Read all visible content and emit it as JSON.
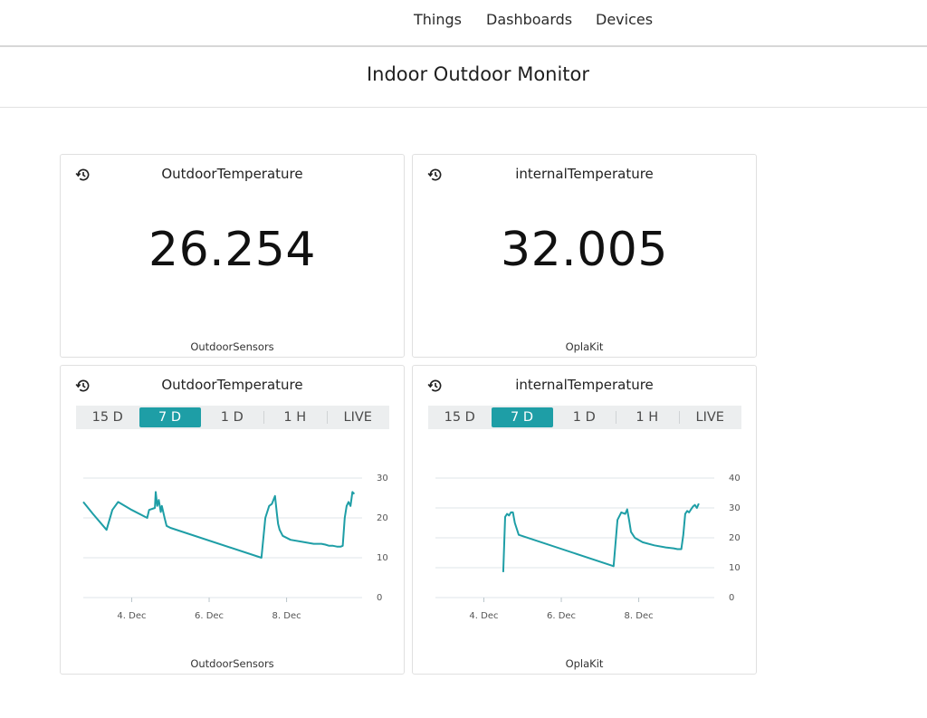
{
  "nav": {
    "items": [
      "Things",
      "Dashboards",
      "Devices"
    ]
  },
  "page": {
    "title": "Indoor Outdoor Monitor"
  },
  "colors": {
    "accent": "#1e9ea6",
    "line": "#1e9ea6",
    "grid": "#dfe6ea"
  },
  "icons": {
    "history": "history-icon"
  },
  "value_cards": [
    {
      "title": "OutdoorTemperature",
      "value": "26.254",
      "footer": "OutdoorSensors"
    },
    {
      "title": "internalTemperature",
      "value": "32.005",
      "footer": "OplaKit"
    }
  ],
  "chart_cards": [
    {
      "title": "OutdoorTemperature",
      "footer": "OutdoorSensors",
      "ranges": [
        "15 D",
        "7 D",
        "1 D",
        "1 H",
        "LIVE"
      ],
      "active_range": "7 D"
    },
    {
      "title": "internalTemperature",
      "footer": "OplaKit",
      "ranges": [
        "15 D",
        "7 D",
        "1 D",
        "1 H",
        "LIVE"
      ],
      "active_range": "7 D"
    }
  ],
  "chart_data": [
    {
      "type": "line",
      "title": "OutdoorTemperature",
      "xlabel": "",
      "ylabel": "",
      "xticks": [
        {
          "day": 4,
          "label": "4. Dec"
        },
        {
          "day": 6,
          "label": "6. Dec"
        },
        {
          "day": 8,
          "label": "8. Dec"
        }
      ],
      "yticks": [
        0,
        10,
        20,
        30
      ],
      "xlim": [
        2.75,
        9.95
      ],
      "ylim": [
        0,
        30
      ],
      "series": [
        {
          "name": "OutdoorTemperature",
          "x": [
            2.75,
            3.0,
            3.35,
            3.5,
            3.65,
            4.0,
            4.4,
            4.45,
            4.6,
            4.62,
            4.66,
            4.7,
            4.75,
            4.78,
            4.85,
            4.9,
            5.0,
            7.35,
            7.45,
            7.55,
            7.62,
            7.7,
            7.75,
            7.78,
            7.82,
            7.9,
            8.1,
            8.4,
            8.7,
            8.9,
            9.0,
            9.1,
            9.2,
            9.3,
            9.4,
            9.45,
            9.5,
            9.55,
            9.6,
            9.65,
            9.7,
            9.75
          ],
          "y": [
            24.0,
            21.0,
            17.0,
            22.0,
            24.0,
            22.0,
            20.0,
            22.0,
            22.5,
            26.5,
            23.0,
            24.5,
            21.5,
            23.0,
            20.0,
            18.0,
            17.5,
            10.0,
            20.0,
            23.0,
            23.5,
            25.5,
            21.0,
            18.5,
            17.0,
            15.5,
            14.5,
            14.0,
            13.5,
            13.5,
            13.3,
            13.0,
            13.0,
            12.8,
            12.8,
            13.0,
            20.0,
            23.0,
            24.0,
            23.0,
            26.5,
            26.0
          ]
        }
      ]
    },
    {
      "type": "line",
      "title": "internalTemperature",
      "xlabel": "",
      "ylabel": "",
      "xticks": [
        {
          "day": 4,
          "label": "4. Dec"
        },
        {
          "day": 6,
          "label": "6. Dec"
        },
        {
          "day": 8,
          "label": "8. Dec"
        }
      ],
      "yticks": [
        0,
        10,
        20,
        30,
        40
      ],
      "xlim": [
        2.75,
        9.95
      ],
      "ylim": [
        0,
        40
      ],
      "series": [
        {
          "name": "internalTemperature",
          "x": [
            4.5,
            4.55,
            4.6,
            4.65,
            4.7,
            4.75,
            4.8,
            4.9,
            7.35,
            7.45,
            7.55,
            7.65,
            7.7,
            7.75,
            7.8,
            7.9,
            8.1,
            8.4,
            8.7,
            8.9,
            9.0,
            9.1,
            9.15,
            9.2,
            9.25,
            9.3,
            9.35,
            9.4,
            9.45,
            9.5,
            9.55
          ],
          "y": [
            8.5,
            27.0,
            28.0,
            27.5,
            28.5,
            28.5,
            25.0,
            21.0,
            10.5,
            26.0,
            28.5,
            28.0,
            29.5,
            26.0,
            22.0,
            20.0,
            18.5,
            17.5,
            16.8,
            16.5,
            16.2,
            16.2,
            21.0,
            28.0,
            29.0,
            28.5,
            29.5,
            30.5,
            31.0,
            30.0,
            31.5
          ]
        }
      ]
    }
  ]
}
